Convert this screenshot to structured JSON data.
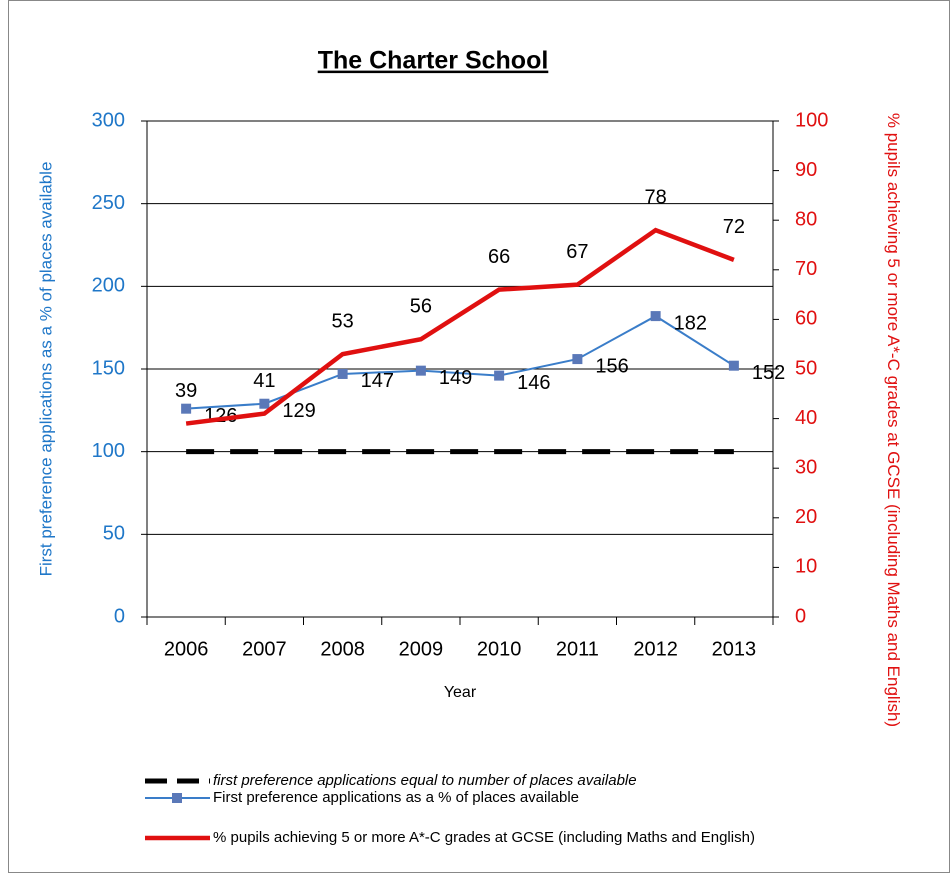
{
  "chart_data": {
    "type": "line",
    "title": "The Charter School",
    "x_label": "Year",
    "y_label": "First preference applications as a % of places available",
    "y2_label": "% pupils achieving 5 or more A*-C grades at GCSE (including Maths and English)",
    "categories": [
      "2006",
      "2007",
      "2008",
      "2009",
      "2010",
      "2011",
      "2012",
      "2013"
    ],
    "ylim": [
      0,
      300
    ],
    "yticks": [
      0,
      50,
      100,
      150,
      200,
      250,
      300
    ],
    "y2lim": [
      0,
      100
    ],
    "y2ticks": [
      0,
      10,
      20,
      30,
      40,
      50,
      60,
      70,
      80,
      90,
      100
    ],
    "grid": true,
    "series": [
      {
        "name": "first preference applications equal to number of places available",
        "color": "#000000",
        "dashed": true,
        "values": [
          100,
          100,
          100,
          100,
          100,
          100,
          100,
          100
        ]
      },
      {
        "name": "First preference applications as a % of places available",
        "color": "#3a7dc9",
        "marker_color": "#5a78b8",
        "values": [
          126,
          129,
          147,
          149,
          146,
          156,
          182,
          152
        ]
      },
      {
        "name": "% pupils achieving 5 or more A*-C grades at GCSE (including Maths and English)",
        "color": "#e01010",
        "axis": "y2",
        "values": [
          39,
          41,
          53,
          56,
          66,
          67,
          78,
          72
        ]
      }
    ]
  }
}
